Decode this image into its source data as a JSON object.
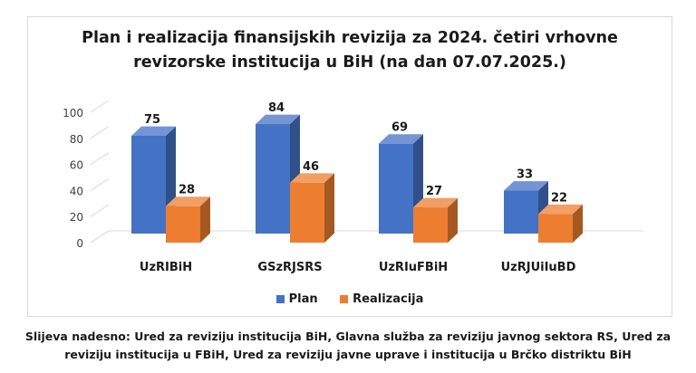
{
  "chart_data": {
    "type": "bar",
    "title_line1": "Plan i realizacija finansijskih revizija za 2024. četiri vrhovne",
    "title_line2": "revizorske institucija u BiH (na dan 07.07.2025.)",
    "categories": [
      "UzRIBiH",
      "GSzRJSRS",
      "UzRIuFBiH",
      "UzRJUiIuBD"
    ],
    "series": [
      {
        "name": "Plan",
        "values": [
          75,
          84,
          69,
          33
        ],
        "color": "#4472C4"
      },
      {
        "name": "Realizacija",
        "values": [
          28,
          46,
          27,
          22
        ],
        "color": "#ED7D31"
      }
    ],
    "ylim": [
      0,
      100
    ],
    "yticks": [
      0,
      20,
      40,
      60,
      80,
      100
    ],
    "legend_position": "bottom",
    "grid": false,
    "style": "3d-clustered-column"
  },
  "caption_line1": "Slijeva nadesno: Ured za reviziju institucija BiH, Glavna služba za reviziju javnog sektora RS, Ured za",
  "caption_line2": "reviziju institucija u FBiH, Ured za reviziju javne uprave i institucija u Brčko distriktu BiH"
}
